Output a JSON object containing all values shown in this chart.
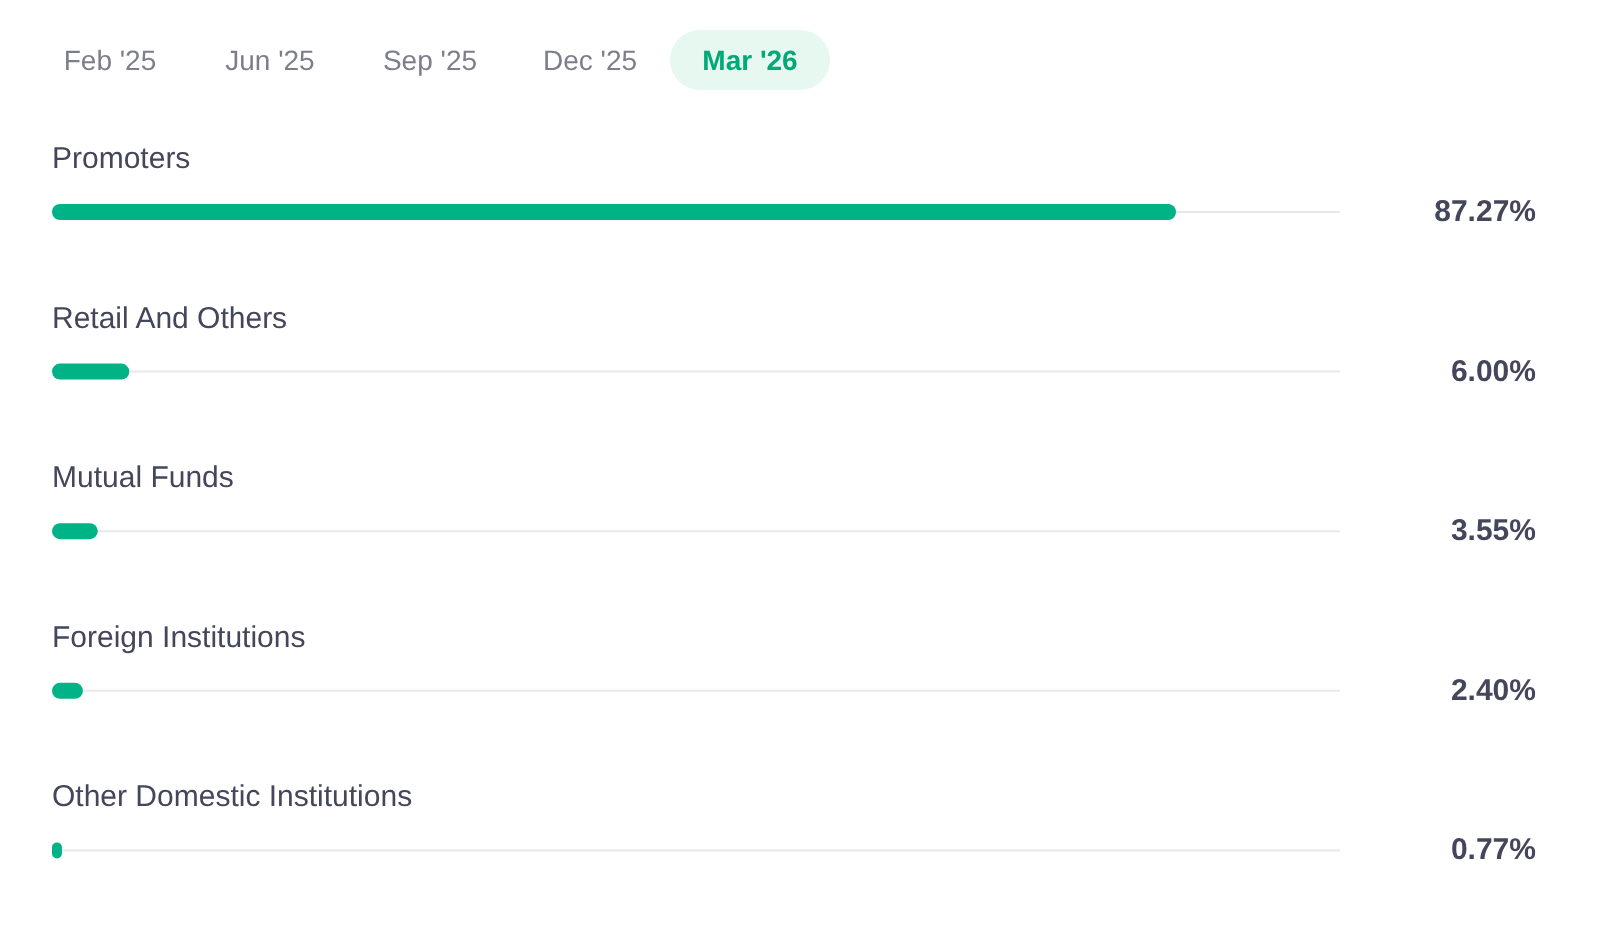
{
  "chart_data": {
    "type": "bar",
    "orientation": "horizontal",
    "categories": [
      "Promoters",
      "Retail And Others",
      "Mutual Funds",
      "Foreign Institutions",
      "Other Domestic Institutions"
    ],
    "values": [
      87.27,
      6.0,
      3.55,
      2.4,
      0.77
    ],
    "value_labels": [
      "87.27%",
      "6.00%",
      "3.55%",
      "2.40%",
      "0.77%"
    ],
    "color": "#00b386",
    "xlim": [
      0,
      100
    ],
    "tick_labels": false,
    "annotations": [
      "Feb '25",
      "Jun '25",
      "Sep '25",
      "Dec '25",
      "Mar '26"
    ]
  }
}
